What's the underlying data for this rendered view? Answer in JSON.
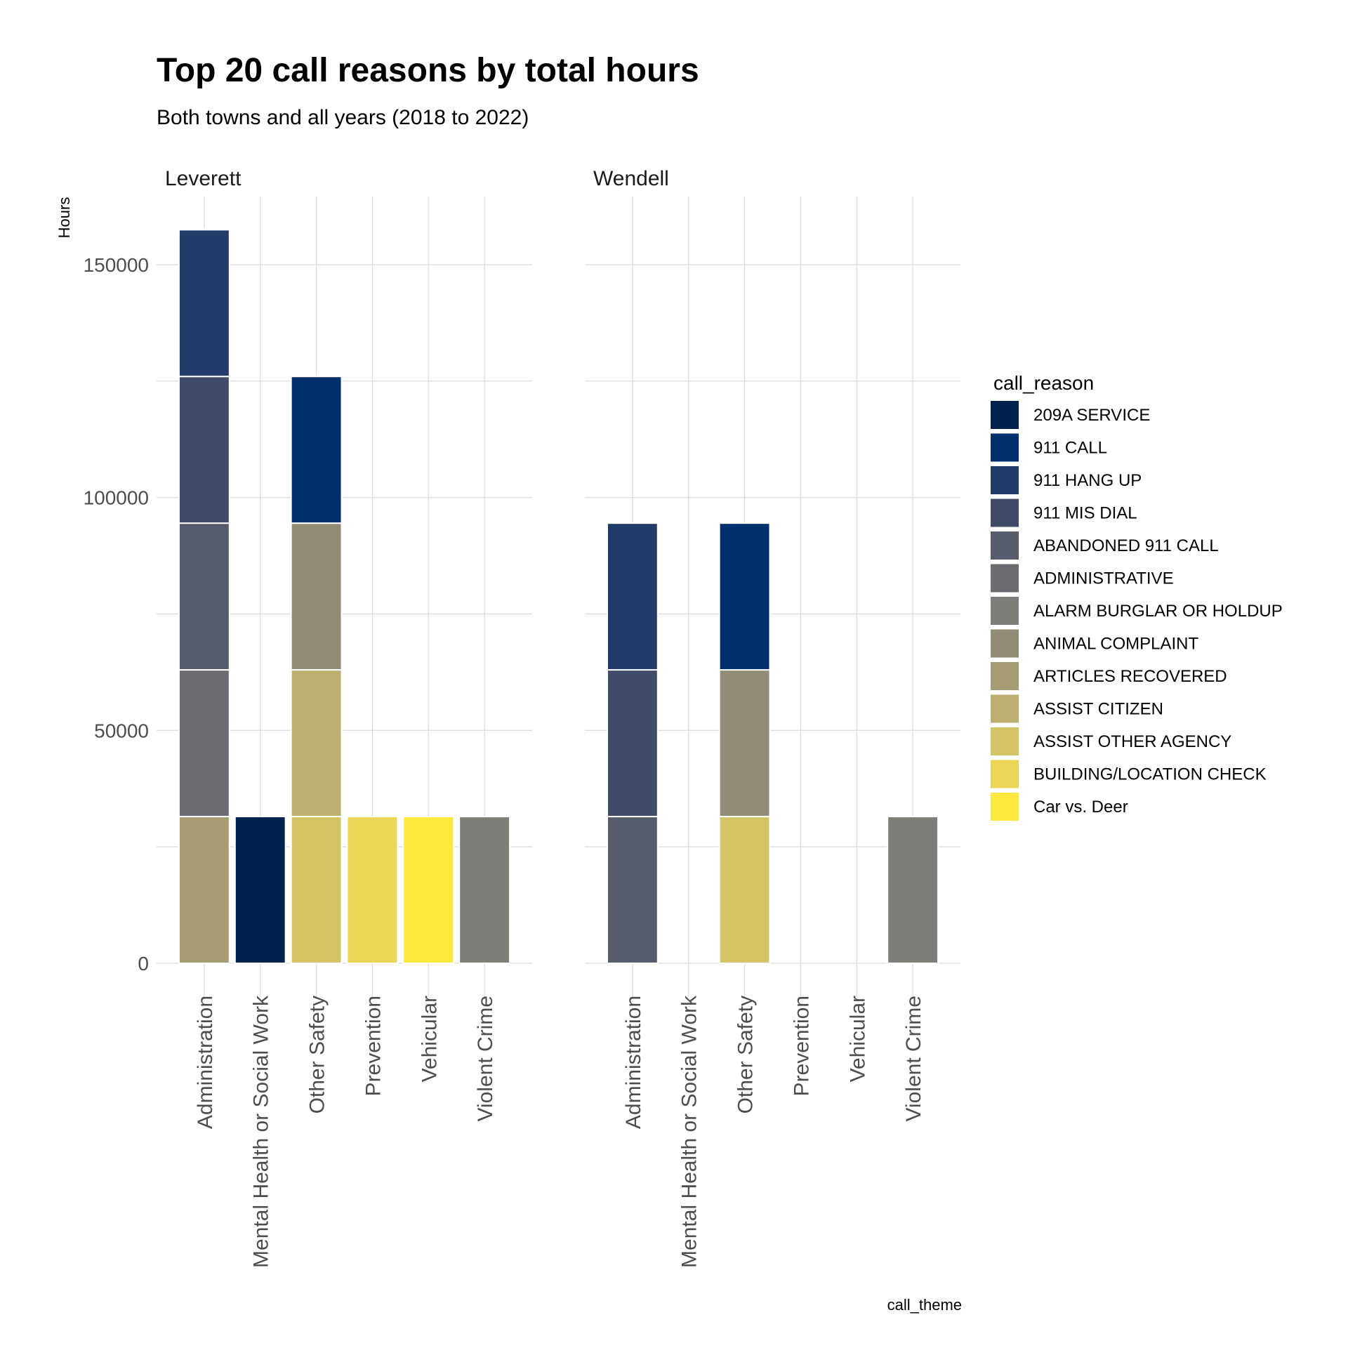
{
  "chart_data": {
    "type": "bar",
    "stacked": true,
    "faceted": true,
    "title": "Top 20 call reasons by total hours",
    "subtitle": "Both towns and all years (2018 to 2022)",
    "xlabel": "call_theme",
    "ylabel": "Hours",
    "ylim": [
      0,
      160000
    ],
    "yticks": [
      0,
      50000,
      100000,
      150000
    ],
    "grid": true,
    "legend_title": "call_reason",
    "legend_position": "right",
    "categories": [
      "Administration",
      "Mental Health or Social Work",
      "Other Safety",
      "Prevention",
      "Vehicular",
      "Violent Crime"
    ],
    "legend": [
      {
        "name": "209A SERVICE",
        "color": "#00224e"
      },
      {
        "name": "911 CALL",
        "color": "#002f6d"
      },
      {
        "name": "911 HANG UP",
        "color": "#223c6a"
      },
      {
        "name": "911 MIS DIAL",
        "color": "#404b6a"
      },
      {
        "name": "ABANDONED 911 CALL",
        "color": "#565c6c"
      },
      {
        "name": "ADMINISTRATIVE",
        "color": "#6b6c71"
      },
      {
        "name": "ALARM BURGLAR OR HOLDUP",
        "color": "#7e7d78"
      },
      {
        "name": "ANIMAL COMPLAINT",
        "color": "#928c76"
      },
      {
        "name": "ARTICLES RECOVERED",
        "color": "#a69c73"
      },
      {
        "name": "ASSIST CITIZEN",
        "color": "#bdaf6f"
      },
      {
        "name": "ASSIST OTHER AGENCY",
        "color": "#d4c465"
      },
      {
        "name": "BUILDING/LOCATION CHECK",
        "color": "#ebd557"
      },
      {
        "name": "Car vs. Deer",
        "color": "#fde93d"
      }
    ],
    "panels": [
      {
        "name": "Leverett",
        "bars": [
          {
            "category": "Administration",
            "segments": [
              {
                "reason": "ARTICLES RECOVERED",
                "value": 31500
              },
              {
                "reason": "ADMINISTRATIVE",
                "value": 31500
              },
              {
                "reason": "ABANDONED 911 CALL",
                "value": 31500
              },
              {
                "reason": "911 MIS DIAL",
                "value": 31500
              },
              {
                "reason": "911 HANG UP",
                "value": 31500
              }
            ]
          },
          {
            "category": "Mental Health or Social Work",
            "segments": [
              {
                "reason": "209A SERVICE",
                "value": 31500
              }
            ]
          },
          {
            "category": "Other Safety",
            "segments": [
              {
                "reason": "ASSIST OTHER AGENCY",
                "value": 31500
              },
              {
                "reason": "ASSIST CITIZEN",
                "value": 31500
              },
              {
                "reason": "ANIMAL COMPLAINT",
                "value": 31500
              },
              {
                "reason": "911 CALL",
                "value": 31500
              }
            ]
          },
          {
            "category": "Prevention",
            "segments": [
              {
                "reason": "BUILDING/LOCATION CHECK",
                "value": 31500
              }
            ]
          },
          {
            "category": "Vehicular",
            "segments": [
              {
                "reason": "Car vs. Deer",
                "value": 31500
              }
            ]
          },
          {
            "category": "Violent Crime",
            "segments": [
              {
                "reason": "ALARM BURGLAR OR HOLDUP",
                "value": 31500
              }
            ]
          }
        ]
      },
      {
        "name": "Wendell",
        "bars": [
          {
            "category": "Administration",
            "segments": [
              {
                "reason": "ABANDONED 911 CALL",
                "value": 31500
              },
              {
                "reason": "911 MIS DIAL",
                "value": 31500
              },
              {
                "reason": "911 HANG UP",
                "value": 31500
              }
            ]
          },
          {
            "category": "Mental Health or Social Work",
            "segments": []
          },
          {
            "category": "Other Safety",
            "segments": [
              {
                "reason": "ASSIST OTHER AGENCY",
                "value": 31500
              },
              {
                "reason": "ANIMAL COMPLAINT",
                "value": 31500
              },
              {
                "reason": "911 CALL",
                "value": 31500
              }
            ]
          },
          {
            "category": "Prevention",
            "segments": []
          },
          {
            "category": "Vehicular",
            "segments": []
          },
          {
            "category": "Violent Crime",
            "segments": [
              {
                "reason": "ALARM BURGLAR OR HOLDUP",
                "value": 31500
              }
            ]
          }
        ]
      }
    ]
  }
}
